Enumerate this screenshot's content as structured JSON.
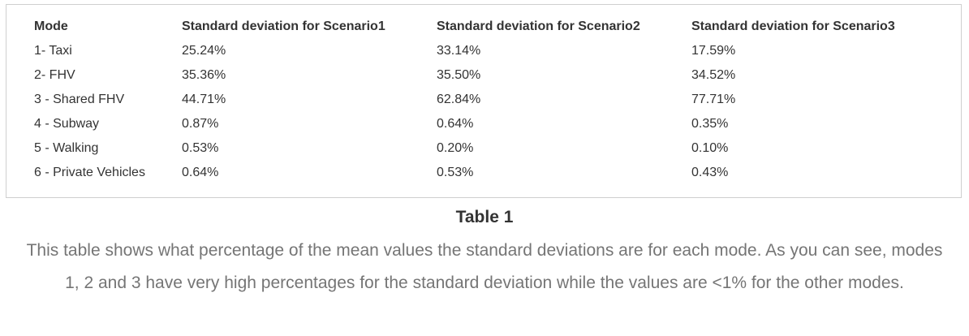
{
  "table": {
    "headers": [
      "Mode",
      "Standard deviation for Scenario1",
      "Standard deviation for Scenario2",
      "Standard deviation for Scenario3"
    ],
    "rows": [
      [
        "1- Taxi",
        "25.24%",
        "33.14%",
        "17.59%"
      ],
      [
        "2- FHV",
        "35.36%",
        "35.50%",
        "34.52%"
      ],
      [
        "3 - Shared FHV",
        "44.71%",
        "62.84%",
        "77.71%"
      ],
      [
        "4 - Subway",
        "0.87%",
        "0.64%",
        "0.35%"
      ],
      [
        "5 - Walking",
        "0.53%",
        "0.20%",
        "0.10%"
      ],
      [
        "6 - Private Vehicles",
        "0.64%",
        "0.53%",
        "0.43%"
      ]
    ]
  },
  "caption": {
    "title": "Table 1",
    "text": "This table shows what percentage of the mean values the standard deviations are for each mode. As you can see, modes 1, 2 and 3  have very high percentages for the standard deviation while the values are <1% for the other modes."
  }
}
